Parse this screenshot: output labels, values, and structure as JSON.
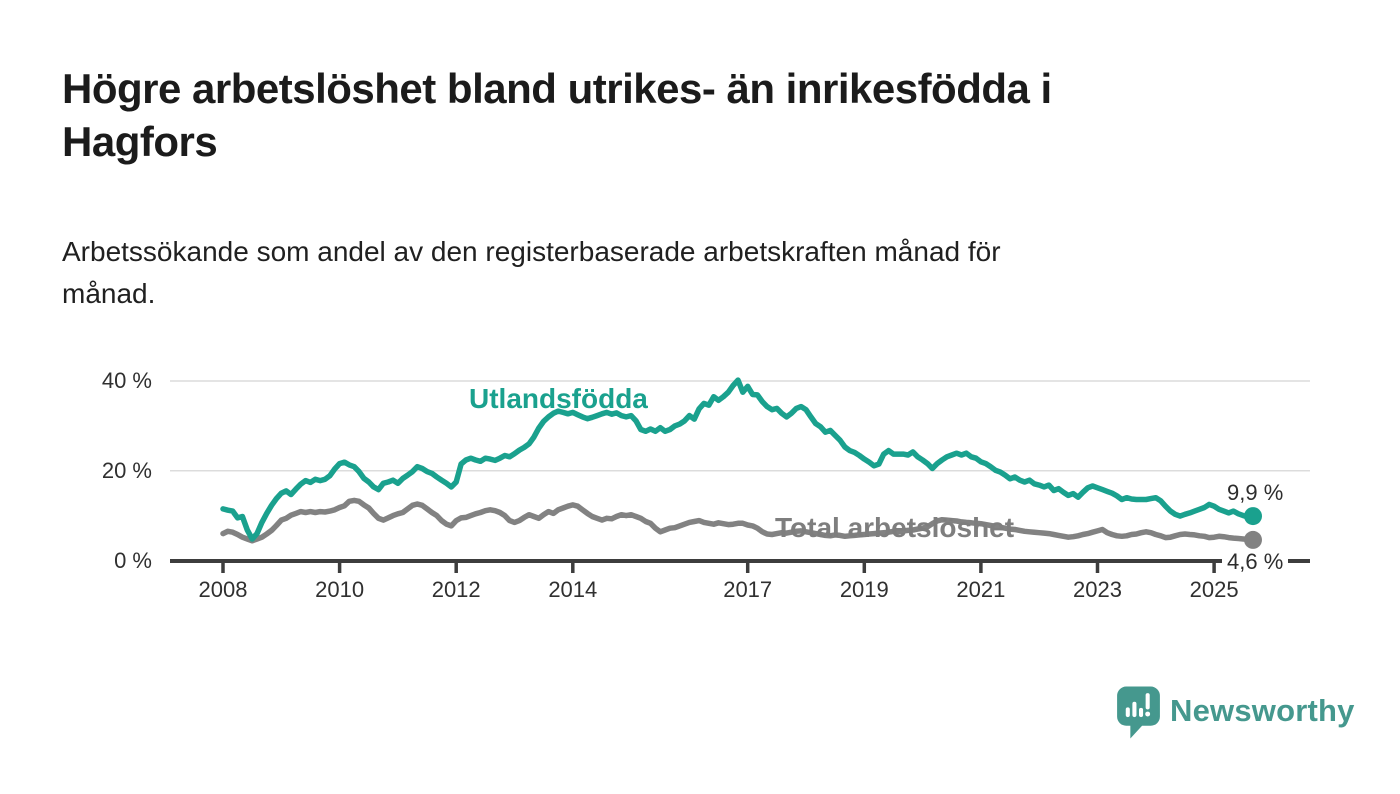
{
  "header": {
    "title_line1": "Högre arbetslöshet bland utrikes- än inrikesfödda i",
    "title_line2": "Hagfors",
    "subtitle_line1": "Arbetssökande som andel av den registerbaserade arbetskraften månad för",
    "subtitle_line2": "månad."
  },
  "footer": {
    "brand": "Newsworthy"
  },
  "colors": {
    "accent_teal": "#1aa18e",
    "line_gray": "#828282",
    "label_gray": "#7e7e7e",
    "axis": "#3d3d3d",
    "grid": "#dcdcdc",
    "text_dark": "#1b1b1b",
    "logo_teal": "#45988e"
  },
  "chart_data": {
    "type": "line",
    "title": "Högre arbetslöshet bland utrikes- än inrikesfödda i Hagfors",
    "subtitle": "Arbetssökande som andel av den registerbaserade arbetskraften månad för månad.",
    "unit": "%",
    "x_start": "2008-01",
    "x_end": "2025-09",
    "x_resolution": "monthly",
    "ylim": [
      0,
      43
    ],
    "grid": "horizontal",
    "legend_position": "inline-labels",
    "y_ticks": [
      {
        "label": "40 %",
        "value": 40
      },
      {
        "label": "20 %",
        "value": 20
      },
      {
        "label": "0 %",
        "value": 0
      }
    ],
    "x_ticks": [
      {
        "label": "2008",
        "year": 2008
      },
      {
        "label": "2010",
        "year": 2010
      },
      {
        "label": "2012",
        "year": 2012
      },
      {
        "label": "2014",
        "year": 2014
      },
      {
        "label": "2017",
        "year": 2017
      },
      {
        "label": "2019",
        "year": 2019
      },
      {
        "label": "2021",
        "year": 2021
      },
      {
        "label": "2023",
        "year": 2023
      },
      {
        "label": "2025",
        "year": 2025
      }
    ],
    "series": [
      {
        "name": "Utlandsfödda",
        "color": "#1aa18e",
        "end_label": "9,9 %",
        "end_value": 9.9,
        "values": [
          11.5,
          11.2,
          11.0,
          9.5,
          9.8,
          6.8,
          4.8,
          6.0,
          8.5,
          10.5,
          12.3,
          13.8,
          15.0,
          15.5,
          14.7,
          15.9,
          17.0,
          17.8,
          17.4,
          18.1,
          17.8,
          18.1,
          18.9,
          20.4,
          21.6,
          21.9,
          21.3,
          20.9,
          19.8,
          18.3,
          17.5,
          16.4,
          15.8,
          17.2,
          17.5,
          17.9,
          17.2,
          18.3,
          19.0,
          19.8,
          20.9,
          20.5,
          19.8,
          19.4,
          18.6,
          17.9,
          17.2,
          16.4,
          17.5,
          21.5,
          22.4,
          22.8,
          22.4,
          22.1,
          22.8,
          22.6,
          22.3,
          22.8,
          23.4,
          23.1,
          23.8,
          24.6,
          25.2,
          26.0,
          27.5,
          29.5,
          31.0,
          32.0,
          32.8,
          33.3,
          33.0,
          32.7,
          33.0,
          32.5,
          32.0,
          31.6,
          31.9,
          32.3,
          32.7,
          33.0,
          32.6,
          32.9,
          32.3,
          32.0,
          32.3,
          31.1,
          29.2,
          28.8,
          29.3,
          28.8,
          29.6,
          28.8,
          29.2,
          30.0,
          30.4,
          31.1,
          32.3,
          31.5,
          33.8,
          35.0,
          34.6,
          36.5,
          35.7,
          36.5,
          37.5,
          39.0,
          40.2,
          37.5,
          38.8,
          37.0,
          36.9,
          35.4,
          34.3,
          33.6,
          33.9,
          32.8,
          32.0,
          32.8,
          33.9,
          34.3,
          33.6,
          32.0,
          30.5,
          29.8,
          28.6,
          29.0,
          27.9,
          26.8,
          25.3,
          24.5,
          24.1,
          23.4,
          22.6,
          21.9,
          21.1,
          21.5,
          23.7,
          24.5,
          23.7,
          23.7,
          23.7,
          23.5,
          24.2,
          23.1,
          22.4,
          21.6,
          20.5,
          21.6,
          22.4,
          23.1,
          23.5,
          23.9,
          23.5,
          23.9,
          23.1,
          22.8,
          22.0,
          21.6,
          20.9,
          20.1,
          19.7,
          19.0,
          18.2,
          18.6,
          17.9,
          17.5,
          17.9,
          17.1,
          16.8,
          16.4,
          16.8,
          15.6,
          16.0,
          15.2,
          14.5,
          14.9,
          14.1,
          15.2,
          16.2,
          16.6,
          16.2,
          15.8,
          15.4,
          15.0,
          14.4,
          13.6,
          14.0,
          13.7,
          13.6,
          13.6,
          13.6,
          13.8,
          14.0,
          13.3,
          12.1,
          11.0,
          10.3,
          9.9,
          10.3,
          10.6,
          11.0,
          11.4,
          11.8,
          12.5,
          12.1,
          11.4,
          11.0,
          10.6,
          11.0,
          10.4,
          10.0,
          9.7,
          9.9
        ]
      },
      {
        "name": "Total arbetslöshet",
        "color": "#828282",
        "end_label": "4,6 %",
        "end_value": 4.6,
        "values": [
          6.0,
          6.5,
          6.3,
          5.8,
          5.2,
          4.8,
          4.4,
          4.8,
          5.2,
          5.9,
          6.7,
          7.8,
          9.0,
          9.4,
          10.1,
          10.5,
          10.9,
          10.7,
          10.9,
          10.7,
          10.9,
          10.8,
          11.0,
          11.3,
          11.8,
          12.2,
          13.2,
          13.4,
          13.2,
          12.4,
          11.7,
          10.5,
          9.4,
          9.0,
          9.5,
          10.0,
          10.4,
          10.7,
          11.5,
          12.3,
          12.6,
          12.3,
          11.5,
          10.7,
          10.0,
          8.9,
          8.1,
          7.7,
          8.9,
          9.5,
          9.6,
          10.0,
          10.4,
          10.7,
          11.1,
          11.3,
          11.1,
          10.7,
          10.0,
          8.9,
          8.5,
          8.9,
          9.6,
          10.2,
          9.8,
          9.4,
          10.2,
          10.9,
          10.5,
          11.3,
          11.7,
          12.1,
          12.4,
          12.1,
          11.3,
          10.5,
          9.8,
          9.4,
          9.0,
          9.4,
          9.3,
          9.8,
          10.2,
          10.0,
          10.2,
          9.8,
          9.4,
          8.7,
          8.3,
          7.2,
          6.4,
          6.8,
          7.2,
          7.3,
          7.7,
          8.1,
          8.5,
          8.7,
          8.9,
          8.5,
          8.3,
          8.1,
          8.4,
          8.2,
          8.0,
          8.1,
          8.3,
          8.3,
          7.9,
          7.7,
          7.2,
          6.4,
          5.9,
          5.8,
          6.0,
          6.2,
          6.1,
          6.3,
          6.5,
          6.6,
          6.4,
          6.2,
          6.0,
          5.8,
          5.6,
          5.5,
          5.7,
          5.6,
          5.4,
          5.5,
          5.6,
          5.7,
          5.8,
          5.9,
          6.0,
          6.1,
          6.2,
          6.3,
          6.5,
          6.4,
          6.6,
          6.7,
          6.8,
          7.0,
          7.2,
          7.5,
          8.2,
          8.8,
          9.1,
          9.0,
          8.9,
          8.8,
          8.6,
          8.5,
          8.4,
          8.3,
          8.2,
          8.0,
          7.8,
          7.6,
          7.4,
          7.2,
          7.0,
          6.9,
          6.7,
          6.5,
          6.4,
          6.3,
          6.2,
          6.1,
          6.0,
          5.8,
          5.6,
          5.4,
          5.2,
          5.3,
          5.5,
          5.8,
          6.0,
          6.3,
          6.6,
          6.9,
          6.2,
          5.8,
          5.5,
          5.4,
          5.5,
          5.8,
          5.9,
          6.2,
          6.4,
          6.2,
          5.8,
          5.5,
          5.1,
          5.2,
          5.5,
          5.8,
          5.9,
          5.8,
          5.7,
          5.5,
          5.4,
          5.1,
          5.2,
          5.4,
          5.3,
          5.1,
          5.0,
          4.9,
          4.8,
          4.7,
          4.6
        ]
      }
    ]
  }
}
